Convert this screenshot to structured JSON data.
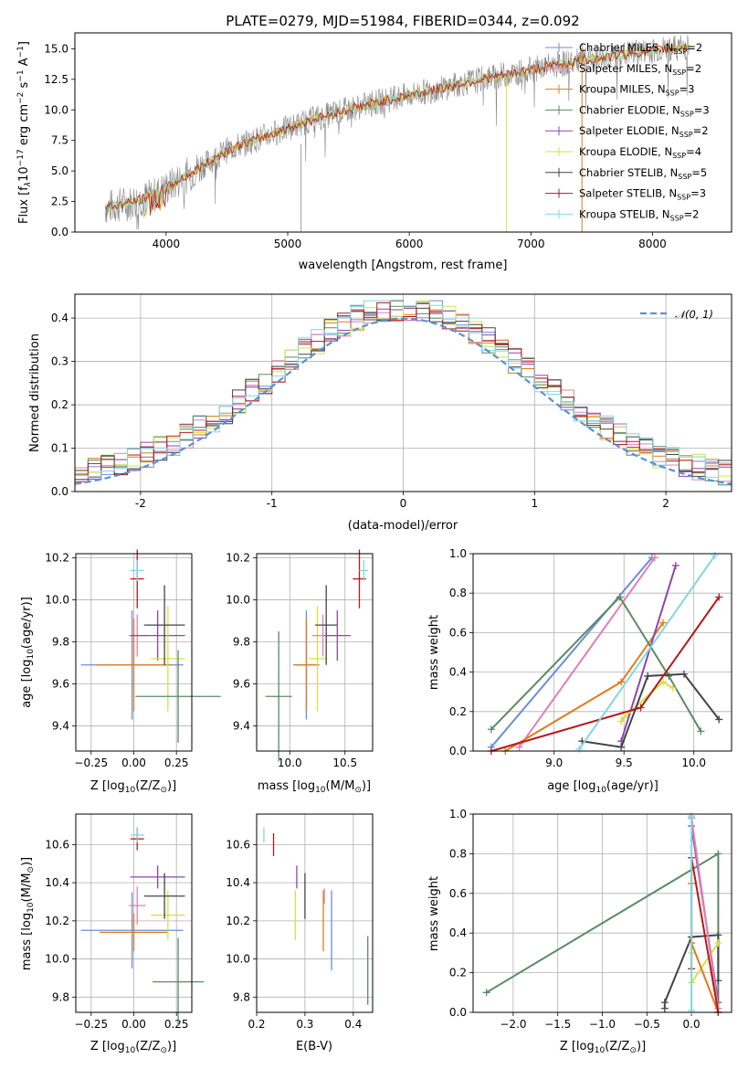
{
  "figure": {
    "title": "PLATE=0279, MJD=51984, FIBERID=0344, z=0.092"
  },
  "colors": {
    "c1": "#6a8fd8",
    "c2": "#e07b1a",
    "c3": "#8e44ad",
    "c4": "#9bb55a",
    "c5": "#444444",
    "c6": "#5b8a63",
    "c7": "#e37fb3",
    "c8": "#b51a1a",
    "c9": "#7fd8e0",
    "c10": "#d4e046",
    "c11": "#888888",
    "normal": "#5b8fd8"
  },
  "chart_data": [
    {
      "id": "spectrum",
      "type": "line",
      "title": "PLATE=0279, MJD=51984, FIBERID=0344, z=0.092",
      "xlabel": "wavelength [Angstrom, rest frame]",
      "ylabel_main": "Flux [f",
      "ylabel_sub1": "λ",
      "ylabel_mid": "10",
      "ylabel_sup1": "−17",
      "ylabel_rest": " erg cm",
      "ylabel_sup2": "−2",
      "ylabel_rest2": " s",
      "ylabel_sup3": "−1",
      "ylabel_rest3": " A",
      "ylabel_sup4": "−1",
      "ylabel_end": "]",
      "xlim": [
        3250,
        8650
      ],
      "ylim": [
        0,
        16.3
      ],
      "xticks": [
        4000,
        5000,
        6000,
        7000,
        8000
      ],
      "yticks": [
        0.0,
        2.5,
        5.0,
        7.5,
        10.0,
        12.5,
        15.0
      ],
      "ytick_labels": [
        "0.0",
        "2.5",
        "5.0",
        "7.5",
        "10.0",
        "12.5",
        "15.0"
      ],
      "continuum": [
        [
          3500,
          2.0
        ],
        [
          3700,
          2.4
        ],
        [
          3900,
          3.0
        ],
        [
          4200,
          4.8
        ],
        [
          4500,
          6.7
        ],
        [
          4800,
          7.8
        ],
        [
          5200,
          9.2
        ],
        [
          5600,
          10.3
        ],
        [
          6000,
          11.2
        ],
        [
          6500,
          12.3
        ],
        [
          7000,
          13.3
        ],
        [
          7400,
          14.0
        ],
        [
          7800,
          14.6
        ],
        [
          8300,
          15.2
        ]
      ],
      "legend": [
        {
          "label": "Chabrier MILES, N",
          "sub": "SSP",
          "tail": "=2",
          "color": "#6a8fd8"
        },
        {
          "label": "Salpeter MILES, N",
          "sub": "SSP",
          "tail": "=2",
          "color": "#e37fb3"
        },
        {
          "label": "Kroupa MILES, N",
          "sub": "SSP",
          "tail": "=3",
          "color": "#e07b1a"
        },
        {
          "label": "Chabrier ELODIE, N",
          "sub": "SSP",
          "tail": "=3",
          "color": "#5b8a63"
        },
        {
          "label": "Salpeter ELODIE, N",
          "sub": "SSP",
          "tail": "=2",
          "color": "#8e44ad"
        },
        {
          "label": "Kroupa ELODIE, N",
          "sub": "SSP",
          "tail": "=4",
          "color": "#d4e046"
        },
        {
          "label": "Chabrier STELIB, N",
          "sub": "SSP",
          "tail": "=5",
          "color": "#444444"
        },
        {
          "label": "Salpeter STELIB, N",
          "sub": "SSP",
          "tail": "=3",
          "color": "#b51a1a"
        },
        {
          "label": "Kroupa STELIB, N",
          "sub": "SSP",
          "tail": "=2",
          "color": "#7fd8e0"
        }
      ]
    },
    {
      "id": "residuals",
      "type": "histogram",
      "xlabel": "(data-model)/error",
      "ylabel": "Normed distribution",
      "xlim": [
        -2.5,
        2.5
      ],
      "ylim": [
        0,
        0.455
      ],
      "xticks": [
        -2,
        -1,
        0,
        1,
        2
      ],
      "yticks": [
        0.0,
        0.1,
        0.2,
        0.3,
        0.4
      ],
      "ytick_labels": [
        "0.0",
        "0.1",
        "0.2",
        "0.3",
        "0.4"
      ],
      "bin_width": 0.1,
      "legend_label": "𝒩(0, 1)",
      "normal_curve": {
        "mean": 0,
        "sigma": 1
      }
    },
    {
      "id": "age-vs-Z",
      "type": "errorbar",
      "xlabel": "Z [log",
      "xlabel_sub": "10",
      "xlabel_end": "(Z/Z",
      "xlabel_sun": "⊙",
      "xlabel_close": ")]",
      "ylabel": "age  [log",
      "ylabel_sub": "10",
      "ylabel_end": "(age/yr)]",
      "xlim": [
        -0.34,
        0.34
      ],
      "ylim": [
        9.28,
        10.22
      ],
      "xticks": [
        -0.25,
        0.0,
        0.25
      ],
      "xtick_labels": [
        "−0.25",
        "0.00",
        "0.25"
      ],
      "yticks": [
        9.4,
        9.6,
        9.8,
        10.0,
        10.2
      ],
      "ytick_labels": [
        "9.4",
        "9.6",
        "9.8",
        "10.0",
        "10.2"
      ],
      "points": [
        {
          "x": -0.01,
          "y": 9.69,
          "xerr": 0.3,
          "yerr": 0.26,
          "color": "#6a8fd8"
        },
        {
          "x": 0.0,
          "y": 9.69,
          "xerr": 0.22,
          "yerr": 0.22,
          "color": "#e07b1a"
        },
        {
          "x": 0.02,
          "y": 9.83,
          "xerr": 0.05,
          "yerr": 0.1,
          "color": "#e37fb3"
        },
        {
          "x": 0.14,
          "y": 9.83,
          "xerr": 0.16,
          "yerr": 0.12,
          "color": "#8e44ad"
        },
        {
          "x": 0.2,
          "y": 9.72,
          "xerr": 0.1,
          "yerr": 0.25,
          "color": "#d4e046"
        },
        {
          "x": 0.18,
          "y": 9.88,
          "xerr": 0.12,
          "yerr": 0.19,
          "color": "#444444"
        },
        {
          "x": 0.26,
          "y": 9.54,
          "xerr": 0.25,
          "yerr": 0.22,
          "color": "#5b8a63"
        },
        {
          "x": 0.02,
          "y": 10.1,
          "xerr": 0.04,
          "yerr": 0.14,
          "color": "#b51a1a"
        },
        {
          "x": 0.02,
          "y": 10.14,
          "xerr": 0.04,
          "yerr": 0.05,
          "color": "#7fd8e0"
        }
      ]
    },
    {
      "id": "age-vs-mass",
      "type": "errorbar",
      "xlabel": "mass [log",
      "xlabel_sub": "10",
      "xlabel_end": "(M/M",
      "xlabel_sun": "⊙",
      "xlabel_close": ")]",
      "xlim": [
        9.7,
        10.75
      ],
      "ylim": [
        9.28,
        10.22
      ],
      "xticks": [
        10.0,
        10.5
      ],
      "xtick_labels": [
        "10.0",
        "10.5"
      ],
      "yticks": [
        9.4,
        9.6,
        9.8,
        10.0,
        10.2
      ],
      "ytick_labels": [
        "9.4",
        "9.6",
        "9.8",
        "10.0",
        "10.2"
      ],
      "points": [
        {
          "x": 9.9,
          "y": 9.54,
          "xerr": 0.12,
          "yerr": 0.31,
          "color": "#5b8a63"
        },
        {
          "x": 10.15,
          "y": 9.69,
          "xerr": 0.12,
          "yerr": 0.26,
          "color": "#6a8fd8"
        },
        {
          "x": 10.15,
          "y": 9.69,
          "xerr": 0.1,
          "yerr": 0.22,
          "color": "#e07b1a"
        },
        {
          "x": 10.25,
          "y": 9.72,
          "xerr": 0.08,
          "yerr": 0.25,
          "color": "#d4e046"
        },
        {
          "x": 10.3,
          "y": 9.83,
          "xerr": 0.1,
          "yerr": 0.1,
          "color": "#e37fb3"
        },
        {
          "x": 10.33,
          "y": 9.88,
          "xerr": 0.1,
          "yerr": 0.19,
          "color": "#444444"
        },
        {
          "x": 10.43,
          "y": 9.83,
          "xerr": 0.12,
          "yerr": 0.12,
          "color": "#8e44ad"
        },
        {
          "x": 10.63,
          "y": 10.1,
          "xerr": 0.06,
          "yerr": 0.14,
          "color": "#b51a1a"
        },
        {
          "x": 10.67,
          "y": 10.14,
          "xerr": 0.04,
          "yerr": 0.05,
          "color": "#7fd8e0"
        }
      ]
    },
    {
      "id": "weight-vs-age",
      "type": "line",
      "xlabel": "age  [log",
      "xlabel_sub": "10",
      "xlabel_end": "(age/yr)]",
      "ylabel": "mass weight",
      "xlim": [
        8.42,
        10.27
      ],
      "ylim": [
        0,
        1
      ],
      "xticks": [
        9.0,
        9.5,
        10.0
      ],
      "xtick_labels": [
        "9.0",
        "9.5",
        "10.0"
      ],
      "yticks": [
        0.0,
        0.2,
        0.4,
        0.6,
        0.8,
        1.0
      ],
      "ytick_labels": [
        "0.0",
        "0.2",
        "0.4",
        "0.6",
        "0.8",
        "1.0"
      ],
      "series": [
        {
          "color": "#6a8fd8",
          "x": [
            8.55,
            9.7
          ],
          "y": [
            0.02,
            0.98
          ]
        },
        {
          "color": "#e37fb3",
          "x": [
            8.75,
            9.72
          ],
          "y": [
            0.02,
            0.98
          ]
        },
        {
          "color": "#e07b1a",
          "x": [
            8.65,
            9.48,
            9.78
          ],
          "y": [
            0.0,
            0.35,
            0.65
          ]
        },
        {
          "color": "#5b8a63",
          "x": [
            8.55,
            9.47,
            9.82,
            10.05
          ],
          "y": [
            0.11,
            0.78,
            0.38,
            0.1
          ]
        },
        {
          "color": "#8e44ad",
          "x": [
            9.48,
            9.87
          ],
          "y": [
            0.05,
            0.94
          ]
        },
        {
          "color": "#d4e046",
          "x": [
            9.48,
            9.5,
            9.78,
            9.85
          ],
          "y": [
            0.15,
            0.17,
            0.35,
            0.32
          ]
        },
        {
          "color": "#444444",
          "x": [
            9.2,
            9.48,
            9.67,
            9.93,
            10.18
          ],
          "y": [
            0.05,
            0.02,
            0.38,
            0.39,
            0.16
          ]
        },
        {
          "color": "#b51a1a",
          "x": [
            8.55,
            9.62,
            10.18
          ],
          "y": [
            0.0,
            0.22,
            0.78
          ]
        },
        {
          "color": "#7fd8e0",
          "x": [
            9.18,
            10.15
          ],
          "y": [
            0.01,
            0.99
          ]
        }
      ]
    },
    {
      "id": "mass-vs-Z",
      "type": "errorbar",
      "xlabel": "Z [log",
      "xlabel_sub": "10",
      "xlabel_end": "(Z/Z",
      "xlabel_sun": "⊙",
      "xlabel_close": ")]",
      "ylabel": "mass [log",
      "ylabel_sub": "10",
      "ylabel_end": "(M/M",
      "ylabel_sun": "⊙",
      "ylabel_close": ")]",
      "xlim": [
        -0.34,
        0.34
      ],
      "ylim": [
        9.72,
        10.76
      ],
      "xticks": [
        -0.25,
        0.0,
        0.25
      ],
      "xtick_labels": [
        "−0.25",
        "0.00",
        "0.25"
      ],
      "yticks": [
        9.8,
        10.0,
        10.2,
        10.4,
        10.6
      ],
      "ytick_labels": [
        "9.8",
        "10.0",
        "10.2",
        "10.4",
        "10.6"
      ],
      "points": [
        {
          "x": -0.01,
          "y": 10.15,
          "xerr": 0.3,
          "yerr": 0.2,
          "color": "#6a8fd8"
        },
        {
          "x": 0.0,
          "y": 10.14,
          "xerr": 0.2,
          "yerr": 0.1,
          "color": "#e07b1a"
        },
        {
          "x": 0.02,
          "y": 10.28,
          "xerr": 0.05,
          "yerr": 0.1,
          "color": "#e37fb3"
        },
        {
          "x": 0.14,
          "y": 10.43,
          "xerr": 0.16,
          "yerr": 0.06,
          "color": "#8e44ad"
        },
        {
          "x": 0.2,
          "y": 10.23,
          "xerr": 0.1,
          "yerr": 0.13,
          "color": "#d4e046"
        },
        {
          "x": 0.18,
          "y": 10.33,
          "xerr": 0.12,
          "yerr": 0.12,
          "color": "#444444"
        },
        {
          "x": 0.26,
          "y": 9.88,
          "xerr": 0.15,
          "yerr": 0.23,
          "color": "#5b8a63"
        },
        {
          "x": 0.02,
          "y": 10.63,
          "xerr": 0.04,
          "yerr": 0.06,
          "color": "#b51a1a"
        },
        {
          "x": 0.02,
          "y": 10.65,
          "xerr": 0.04,
          "yerr": 0.04,
          "color": "#7fd8e0"
        }
      ]
    },
    {
      "id": "mass-vs-EBV",
      "type": "errorbar",
      "xlabel": "E(B-V)",
      "xlim": [
        0.2,
        0.44
      ],
      "ylim": [
        9.72,
        10.76
      ],
      "xticks": [
        0.2,
        0.3,
        0.4
      ],
      "xtick_labels": [
        "0.2",
        "0.3",
        "0.4"
      ],
      "yticks": [
        9.8,
        10.0,
        10.2,
        10.4,
        10.6
      ],
      "ytick_labels": [
        "9.8",
        "10.0",
        "10.2",
        "10.4",
        "10.6"
      ],
      "points": [
        {
          "x": 0.215,
          "y": 10.65,
          "xerr": 0,
          "yerr": 0.04,
          "color": "#7fd8e0"
        },
        {
          "x": 0.235,
          "y": 10.6,
          "xerr": 0,
          "yerr": 0.06,
          "color": "#b51a1a"
        },
        {
          "x": 0.28,
          "y": 10.23,
          "xerr": 0,
          "yerr": 0.13,
          "color": "#d4e046"
        },
        {
          "x": 0.283,
          "y": 10.43,
          "xerr": 0,
          "yerr": 0.06,
          "color": "#8e44ad"
        },
        {
          "x": 0.3,
          "y": 10.33,
          "xerr": 0,
          "yerr": 0.12,
          "color": "#444444"
        },
        {
          "x": 0.338,
          "y": 10.2,
          "xerr": 0,
          "yerr": 0.16,
          "color": "#e07b1a"
        },
        {
          "x": 0.34,
          "y": 10.33,
          "xerr": 0,
          "yerr": 0.04,
          "color": "#e37fb3"
        },
        {
          "x": 0.355,
          "y": 10.15,
          "xerr": 0,
          "yerr": 0.21,
          "color": "#6a8fd8"
        },
        {
          "x": 0.43,
          "y": 9.94,
          "xerr": 0,
          "yerr": 0.18,
          "color": "#5b8a63"
        }
      ]
    },
    {
      "id": "weight-vs-Z",
      "type": "line",
      "xlabel": "Z [log",
      "xlabel_sub": "10",
      "xlabel_end": "(Z/Z",
      "xlabel_sun": "⊙",
      "xlabel_close": ")]",
      "ylabel": "mass weight",
      "xlim": [
        -2.45,
        0.45
      ],
      "ylim": [
        0,
        1
      ],
      "xticks": [
        -2.0,
        -1.5,
        -1.0,
        -0.5,
        0.0
      ],
      "xtick_labels": [
        "−2.0",
        "−1.5",
        "−1.0",
        "−0.5",
        "0.0"
      ],
      "yticks": [
        0.0,
        0.2,
        0.4,
        0.6,
        0.8,
        1.0
      ],
      "ytick_labels": [
        "0.0",
        "0.2",
        "0.4",
        "0.6",
        "0.8",
        "1.0"
      ],
      "series": [
        {
          "color": "#5b8a63",
          "x": [
            -2.3,
            0.3,
            0.3
          ],
          "y": [
            0.1,
            0.8,
            0.0
          ]
        },
        {
          "color": "#444444",
          "x": [
            -0.3,
            -0.3,
            0.0,
            0.3,
            0.3
          ],
          "y": [
            0.02,
            0.05,
            0.38,
            0.39,
            0.16
          ]
        },
        {
          "color": "#8e44ad",
          "x": [
            0.0,
            0.3
          ],
          "y": [
            0.94,
            0.05
          ]
        },
        {
          "color": "#d4e046",
          "x": [
            0.0,
            0.0,
            0.3
          ],
          "y": [
            0.3,
            0.15,
            0.35
          ]
        },
        {
          "color": "#e07b1a",
          "x": [
            0.0,
            0.0,
            0.3
          ],
          "y": [
            0.65,
            0.35,
            0.0
          ]
        },
        {
          "color": "#6a8fd8",
          "x": [
            0.0,
            0.3
          ],
          "y": [
            0.98,
            0.02
          ]
        },
        {
          "color": "#e37fb3",
          "x": [
            0.0,
            0.3
          ],
          "y": [
            0.98,
            0.02
          ]
        },
        {
          "color": "#b51a1a",
          "x": [
            0.0,
            0.0,
            0.3
          ],
          "y": [
            0.22,
            0.78,
            0.0
          ]
        },
        {
          "color": "#7fd8e0",
          "x": [
            0.0,
            0.0
          ],
          "y": [
            0.01,
            0.99
          ]
        }
      ]
    }
  ]
}
